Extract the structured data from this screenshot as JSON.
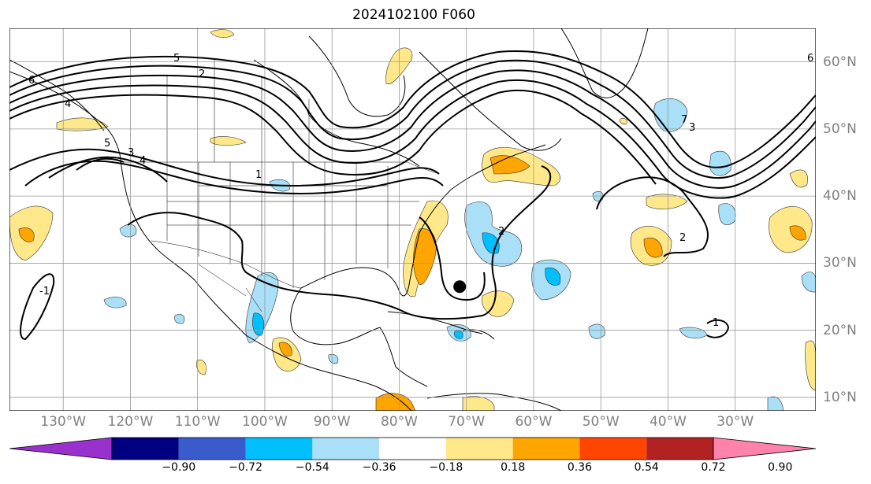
{
  "title": "2024102100 F060",
  "map": {
    "projection": "cylindrical",
    "lon_range": [
      -138,
      -18
    ],
    "lat_range": [
      8,
      65
    ],
    "longitude_labels": [
      "130°W",
      "120°W",
      "110°W",
      "100°W",
      "90°W",
      "80°W",
      "70°W",
      "60°W",
      "50°W",
      "40°W",
      "30°W"
    ],
    "latitude_labels": [
      "60°N",
      "50°N",
      "40°N",
      "30°N",
      "20°N",
      "10°N"
    ],
    "gridlines": true,
    "contour_labels": [
      "5",
      "2",
      "6",
      "4",
      "5",
      "4",
      "3",
      "1",
      "2",
      "2",
      "6",
      "7",
      "3",
      "1",
      "-1"
    ],
    "storm_marker": {
      "lon": -71,
      "lat": 26.5,
      "color": "#000000"
    }
  },
  "colorbar": {
    "extend": "both",
    "colors": [
      "#9932cc",
      "#000080",
      "#3a5bcc",
      "#00bfff",
      "#a9dff7",
      "#ffffff",
      "#ffe88a",
      "#ffa500",
      "#ff4500",
      "#b22222",
      "#ff82ab"
    ],
    "tick_labels": [
      "−0.90",
      "−0.72",
      "−0.54",
      "−0.36",
      "−0.18",
      "0.18",
      "0.36",
      "0.54",
      "0.72",
      "0.90"
    ]
  }
}
